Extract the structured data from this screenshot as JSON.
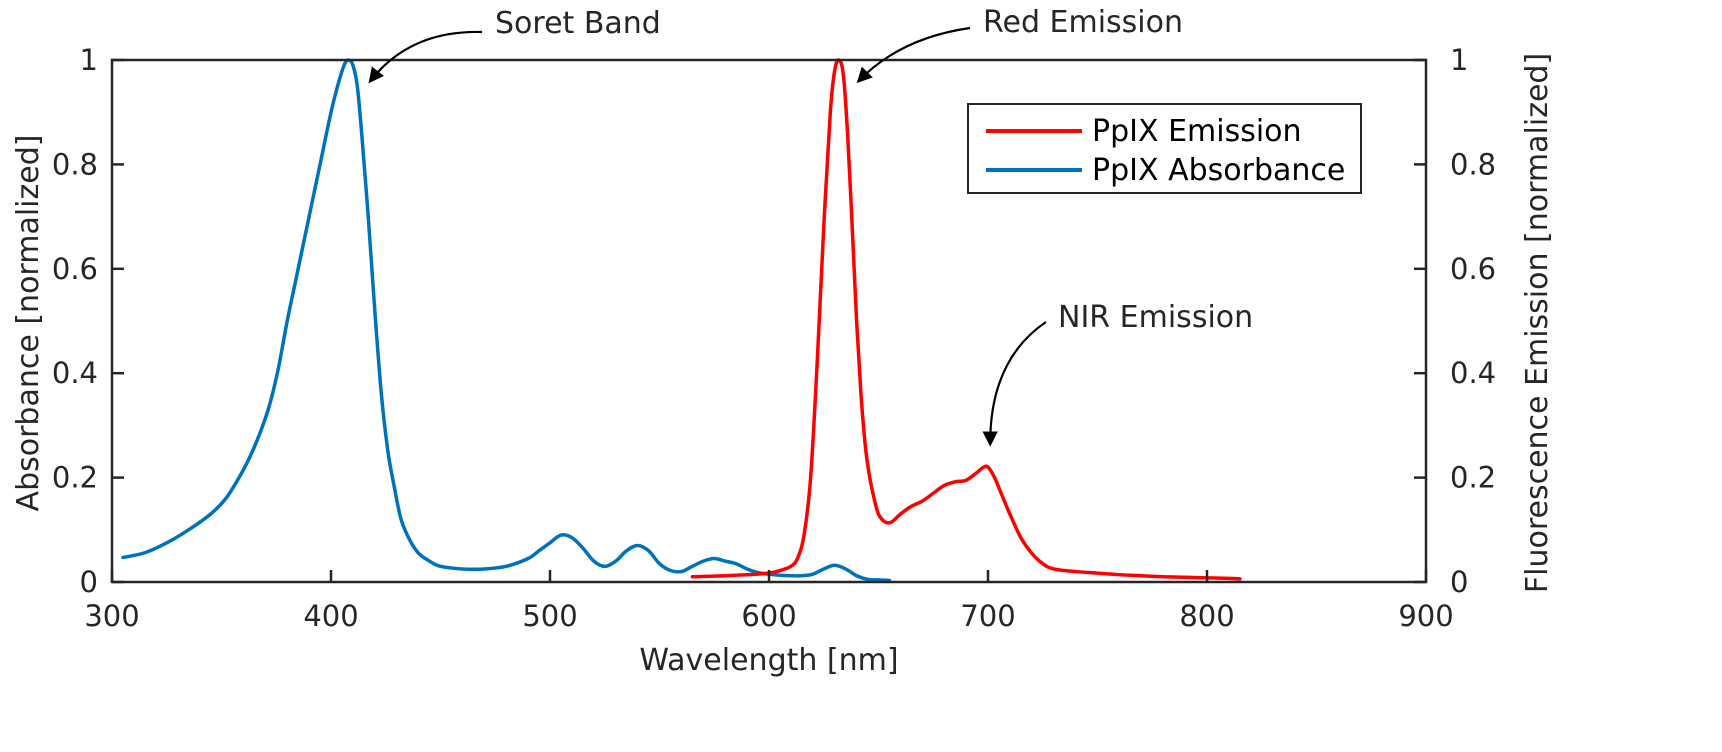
{
  "colors": {
    "emission": "#ff0000",
    "absorbance": "#0072bd",
    "axis": "#262626",
    "background": "#ffffff"
  },
  "chart_data": {
    "type": "line",
    "title": "",
    "xlabel": "Wavelength [nm]",
    "ylabel_left": "Absorbance [normalized]",
    "ylabel_right": "Fluorescence Emission [normalized]",
    "xlim": [
      300,
      900
    ],
    "ylim_left": [
      0,
      1
    ],
    "ylim_right": [
      0,
      1
    ],
    "x_ticks": [
      300,
      400,
      500,
      600,
      700,
      800,
      900
    ],
    "y_ticks": [
      0,
      0.2,
      0.4,
      0.6,
      0.8,
      1
    ],
    "x_tick_labels": [
      "300",
      "400",
      "500",
      "600",
      "700",
      "800",
      "900"
    ],
    "y_tick_labels": [
      "0",
      "0.2",
      "0.4",
      "0.6",
      "0.8",
      "1"
    ],
    "grid": false,
    "legend_position": "top-right",
    "series": [
      {
        "name": "PpIX Emission",
        "color": "#ff0000",
        "axis": "right",
        "x": [
          565,
          580,
          590,
          600,
          605,
          610,
          613,
          616,
          619,
          622,
          625,
          628,
          630,
          632,
          634,
          636,
          638,
          640,
          642,
          644,
          646,
          648,
          650,
          653,
          656,
          660,
          665,
          670,
          675,
          680,
          685,
          690,
          695,
          698,
          700,
          703,
          706,
          710,
          715,
          720,
          725,
          730,
          740,
          750,
          760,
          770,
          780,
          790,
          800,
          810,
          815
        ],
        "y": [
          0.01,
          0.012,
          0.014,
          0.017,
          0.022,
          0.03,
          0.045,
          0.09,
          0.2,
          0.42,
          0.68,
          0.9,
          0.98,
          1.0,
          0.97,
          0.85,
          0.68,
          0.5,
          0.36,
          0.26,
          0.2,
          0.16,
          0.13,
          0.115,
          0.115,
          0.13,
          0.145,
          0.155,
          0.17,
          0.185,
          0.192,
          0.195,
          0.21,
          0.22,
          0.22,
          0.2,
          0.17,
          0.13,
          0.085,
          0.055,
          0.035,
          0.025,
          0.02,
          0.017,
          0.014,
          0.012,
          0.01,
          0.009,
          0.008,
          0.007,
          0.006
        ]
      },
      {
        "name": "PpIX Absorbance",
        "color": "#0072bd",
        "axis": "left",
        "x": [
          305,
          315,
          325,
          335,
          345,
          352,
          358,
          363,
          368,
          372,
          376,
          380,
          384,
          388,
          392,
          396,
          400,
          403,
          406,
          408,
          410,
          412,
          414,
          417,
          420,
          423,
          426,
          429,
          432,
          436,
          440,
          445,
          450,
          460,
          470,
          480,
          490,
          495,
          500,
          505,
          510,
          515,
          520,
          525,
          530,
          535,
          540,
          545,
          550,
          555,
          560,
          565,
          570,
          575,
          580,
          585,
          590,
          595,
          600,
          605,
          610,
          615,
          620,
          625,
          630,
          635,
          640,
          645,
          650,
          655
        ],
        "y": [
          0.047,
          0.056,
          0.075,
          0.1,
          0.13,
          0.16,
          0.2,
          0.24,
          0.29,
          0.34,
          0.41,
          0.5,
          0.58,
          0.66,
          0.74,
          0.82,
          0.9,
          0.95,
          0.99,
          1.0,
          0.99,
          0.95,
          0.86,
          0.7,
          0.52,
          0.36,
          0.25,
          0.18,
          0.12,
          0.08,
          0.055,
          0.04,
          0.03,
          0.025,
          0.025,
          0.03,
          0.045,
          0.06,
          0.075,
          0.09,
          0.085,
          0.065,
          0.04,
          0.03,
          0.04,
          0.06,
          0.07,
          0.06,
          0.035,
          0.022,
          0.02,
          0.03,
          0.04,
          0.045,
          0.04,
          0.035,
          0.025,
          0.018,
          0.015,
          0.013,
          0.012,
          0.012,
          0.015,
          0.025,
          0.032,
          0.025,
          0.012,
          0.005,
          0.004,
          0.003
        ]
      }
    ],
    "annotations": [
      {
        "text": "Soret Band",
        "target_x": 418,
        "target_y": 0.96,
        "axis": "left"
      },
      {
        "text": "Red Emission",
        "target_x": 641,
        "target_y": 0.96,
        "axis": "right"
      },
      {
        "text": "NIR Emission",
        "target_x": 701,
        "target_y": 0.265,
        "axis": "right"
      }
    ]
  }
}
